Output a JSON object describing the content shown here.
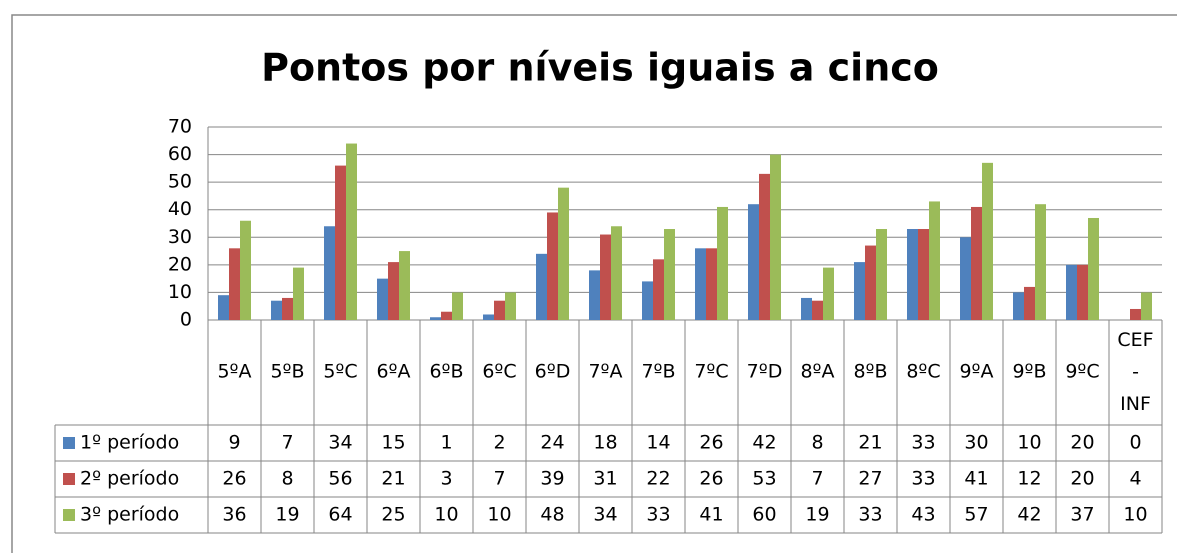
{
  "chart_data": {
    "type": "bar",
    "title": "Pontos por níveis iguais a cinco",
    "categories": [
      "5ºA",
      "5ºB",
      "5ºC",
      "6ºA",
      "6ºB",
      "6ºC",
      "6ºD",
      "7ºA",
      "7ºB",
      "7ºC",
      "7ºD",
      "8ºA",
      "8ºB",
      "8ºC",
      "9ºA",
      "9ºB",
      "9ºC",
      "CEF - INF"
    ],
    "series": [
      {
        "name": "1º período",
        "color": "#4f81bd",
        "values": [
          9,
          7,
          34,
          15,
          1,
          2,
          24,
          18,
          14,
          26,
          42,
          8,
          21,
          33,
          30,
          10,
          20,
          0
        ]
      },
      {
        "name": "2º período",
        "color": "#c0504d",
        "values": [
          26,
          8,
          56,
          21,
          3,
          7,
          39,
          31,
          22,
          26,
          53,
          7,
          27,
          33,
          41,
          12,
          20,
          4
        ]
      },
      {
        "name": "3º período",
        "color": "#9bbb59",
        "values": [
          36,
          19,
          64,
          25,
          10,
          10,
          48,
          34,
          33,
          41,
          60,
          19,
          33,
          43,
          57,
          42,
          37,
          10
        ]
      }
    ],
    "ylim": [
      0,
      70
    ],
    "yticks": [
      0,
      10,
      20,
      30,
      40,
      50,
      60,
      70
    ],
    "grid": true,
    "legend": "data-table"
  }
}
